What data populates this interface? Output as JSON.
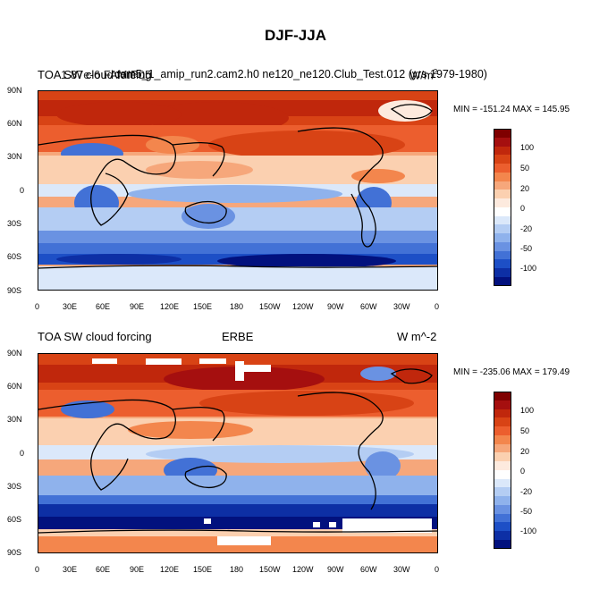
{
  "figure": {
    "title": "DJF-JJA"
  },
  "panels": [
    {
      "id": "top",
      "left_title": "TOA SW cloud forcing",
      "overlap_text": "1.87e-6 FAMIP05",
      "center_title": "cam5_1_amip_run2.cam2.h0  ne120_ne120.Club_Test.012 (yrs 1979-1980)",
      "right_title": "W/m",
      "right_title_sup": "2",
      "min_max": "MIN = -151.24  MAX = 145.95"
    },
    {
      "id": "bottom",
      "left_title": "TOA SW cloud forcing",
      "center_title": "ERBE",
      "right_title": "W m^-2",
      "min_max": "MIN = -235.06  MAX = 179.49"
    }
  ],
  "axes": {
    "lat_labels": [
      "90N",
      "60N",
      "30N",
      "0",
      "30S",
      "60S",
      "90S"
    ],
    "lon_labels": [
      "0",
      "30E",
      "60E",
      "90E",
      "120E",
      "150E",
      "180",
      "150W",
      "120W",
      "90W",
      "60W",
      "30W",
      "0"
    ]
  },
  "colorbar": {
    "labels": [
      "100",
      "50",
      "20",
      "0",
      "-20",
      "-50",
      "-100"
    ],
    "colors": [
      "#7f0000",
      "#a50f0f",
      "#c0270c",
      "#d84315",
      "#ec5e2e",
      "#f3864d",
      "#f6a77b",
      "#fbd0b0",
      "#fdeade",
      "#ffffff",
      "#dbe8fa",
      "#b4cdf3",
      "#8fb2ec",
      "#6a92e2",
      "#4271d6",
      "#1d4fc6",
      "#0d2fa5",
      "#02117e"
    ]
  }
}
